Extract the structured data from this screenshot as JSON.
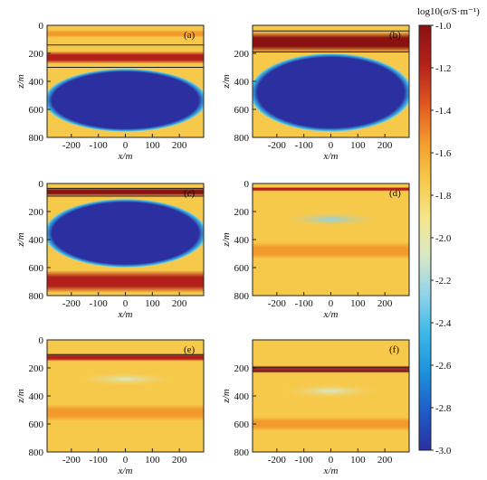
{
  "colorbar": {
    "title": "log10(σ/S·m⁻¹)",
    "min": -3.0,
    "max": -1.0,
    "ticks": [
      "-1.0",
      "-1.2",
      "-1.4",
      "-1.6",
      "-1.8",
      "-2.0",
      "-2.2",
      "-2.4",
      "-2.6",
      "-2.8",
      "-3.0"
    ],
    "colors": [
      "#2b2fa0",
      "#1e5cc8",
      "#1e90dc",
      "#3ab8e6",
      "#8fd3ea",
      "#d8e8c8",
      "#f4e68c",
      "#f7c94a",
      "#f39a2d",
      "#df5520",
      "#b3201a",
      "#8a1210"
    ]
  },
  "chart_data": [
    {
      "type": "heatmap",
      "panel_label": "(a)",
      "xlabel": "x/m",
      "ylabel": "z/m",
      "xlim": [
        -290,
        290
      ],
      "ylim": [
        800,
        0
      ],
      "xticks": [
        "-200",
        "-100",
        "0",
        "100",
        "200"
      ],
      "yticks": [
        "0",
        "200",
        "400",
        "600",
        "800"
      ],
      "bands": [
        {
          "z": 60,
          "thickness": 55,
          "value": -1.55
        },
        {
          "z": 230,
          "thickness": 90,
          "value": -1.1
        }
      ],
      "lines_z": [
        140,
        300
      ],
      "body": {
        "z_top": 310,
        "z_bottom": 760,
        "value": -3.0
      }
    },
    {
      "type": "heatmap",
      "panel_label": "(b)",
      "xlabel": "x/m",
      "ylabel": "z/m",
      "xlim": [
        -290,
        290
      ],
      "ylim": [
        800,
        0
      ],
      "xticks": [
        "-200",
        "-100",
        "0",
        "100",
        "200"
      ],
      "yticks": [
        "200",
        "400",
        "600",
        "800"
      ],
      "bands": [
        {
          "z": 120,
          "thickness": 150,
          "value": -1.05
        }
      ],
      "lines_z": [
        40,
        190
      ],
      "body": {
        "z_top": 200,
        "z_bottom": 760,
        "value": -3.0
      }
    },
    {
      "type": "heatmap",
      "panel_label": "(c)",
      "xlabel": "x/m",
      "ylabel": "z/m",
      "xlim": [
        -290,
        290
      ],
      "ylim": [
        800,
        0
      ],
      "xticks": [
        "-200",
        "-100",
        "0",
        "100",
        "200"
      ],
      "yticks": [
        "0",
        "200",
        "400",
        "600",
        "800"
      ],
      "bands": [
        {
          "z": 60,
          "thickness": 60,
          "value": -1.05
        },
        {
          "z": 700,
          "thickness": 160,
          "value": -1.1
        }
      ],
      "lines_z": [
        35,
        90
      ],
      "body": {
        "z_top": 110,
        "z_bottom": 600,
        "value": -3.0
      }
    },
    {
      "type": "heatmap",
      "panel_label": "(d)",
      "xlabel": "x/m",
      "ylabel": "z/m",
      "xlim": [
        -290,
        290
      ],
      "ylim": [
        800,
        0
      ],
      "xticks": [
        "-200",
        "-100",
        "0",
        "100",
        "200"
      ],
      "yticks": [
        "0",
        "200",
        "400",
        "600",
        "800"
      ],
      "bands": [
        {
          "z": 40,
          "thickness": 30,
          "value": -1.2
        },
        {
          "z": 480,
          "thickness": 120,
          "value": -1.6
        }
      ],
      "lines_z": [],
      "body": {
        "z_top": 200,
        "z_bottom": 310,
        "value": -2.2
      }
    },
    {
      "type": "heatmap",
      "panel_label": "(e)",
      "xlabel": "x/m",
      "ylabel": "z/m",
      "xlim": [
        -290,
        290
      ],
      "ylim": [
        800,
        0
      ],
      "xticks": [
        "-200",
        "-100",
        "0",
        "100",
        "200"
      ],
      "yticks": [
        "0",
        "200",
        "400",
        "600",
        "800"
      ],
      "bands": [
        {
          "z": 125,
          "thickness": 55,
          "value": -1.25
        },
        {
          "z": 520,
          "thickness": 120,
          "value": -1.55
        }
      ],
      "lines_z": [
        105
      ],
      "body": {
        "z_top": 230,
        "z_bottom": 330,
        "value": -2.1
      }
    },
    {
      "type": "heatmap",
      "panel_label": "(f)",
      "xlabel": "x/m",
      "ylabel": "z/m",
      "xlim": [
        -290,
        290
      ],
      "ylim": [
        800,
        0
      ],
      "xticks": [
        "-200",
        "-100",
        "0",
        "100",
        "200"
      ],
      "yticks": [
        "200",
        "400",
        "600",
        "800"
      ],
      "bands": [
        {
          "z": 210,
          "thickness": 55,
          "value": -1.25
        },
        {
          "z": 600,
          "thickness": 100,
          "value": -1.6
        }
      ],
      "lines_z": [
        195,
        225
      ],
      "body": {
        "z_top": 310,
        "z_bottom": 420,
        "value": -2.1
      }
    }
  ]
}
